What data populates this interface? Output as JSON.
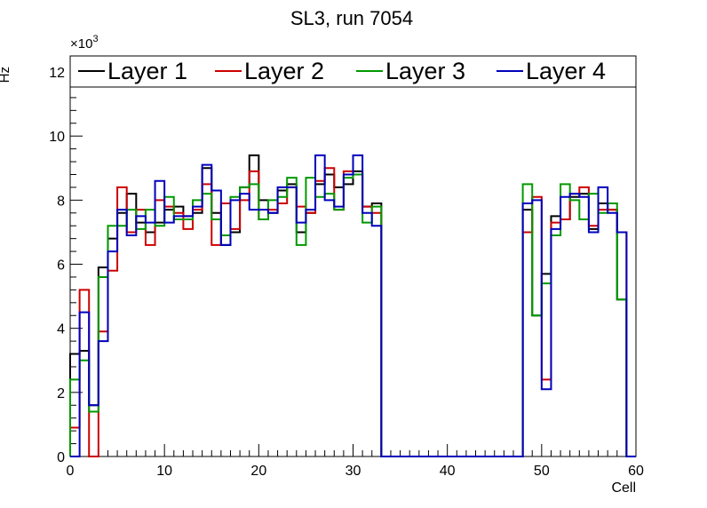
{
  "chart_data": {
    "type": "histogram-step",
    "title": "SL3, run 7054",
    "xlabel": "Cell",
    "ylabel": "Hz",
    "y_exponent_label": "×10",
    "y_exponent_power": "3",
    "xlim": [
      0,
      60
    ],
    "ylim": [
      0,
      12.5
    ],
    "y_scale_note": "values in units of 10^3 Hz",
    "x_ticks": [
      0,
      10,
      20,
      30,
      40,
      50,
      60
    ],
    "x_tick_labels": [
      "0",
      "10",
      "20",
      "30",
      "40",
      "50",
      "60"
    ],
    "y_ticks": [
      0,
      2,
      4,
      6,
      8,
      10,
      12
    ],
    "y_tick_labels": [
      "0",
      "2",
      "4",
      "6",
      "8",
      "10",
      "12"
    ],
    "legend_position": "top (spanning width)",
    "bin_edges_start": 0,
    "bin_width": 1,
    "series": [
      {
        "name": "Layer 1",
        "color": "#000000",
        "values": [
          3.2,
          3.3,
          1.6,
          5.9,
          6.8,
          7.6,
          8.2,
          7.3,
          7.0,
          7.3,
          7.7,
          7.8,
          7.5,
          7.6,
          9.0,
          7.6,
          6.6,
          7.0,
          8.4,
          9.4,
          8.0,
          7.6,
          8.3,
          8.5,
          7.0,
          7.6,
          8.5,
          8.8,
          8.4,
          8.5,
          8.9,
          7.8,
          7.9,
          0,
          0,
          0,
          0,
          0,
          0,
          0,
          0,
          0,
          0,
          0,
          0,
          0,
          0,
          0,
          7.7,
          4.4,
          5.7,
          7.5,
          7.4,
          8.1,
          8.2,
          7.1,
          7.9,
          7.7,
          4.9,
          0
        ]
      },
      {
        "name": "Layer 2",
        "color": "#cc0000",
        "values": [
          0.9,
          5.2,
          0,
          3.9,
          5.8,
          8.4,
          7.0,
          7.7,
          6.6,
          8.0,
          7.8,
          7.6,
          7.1,
          7.7,
          8.5,
          6.6,
          7.9,
          7.1,
          8.0,
          8.9,
          7.4,
          7.7,
          7.9,
          8.4,
          7.8,
          7.6,
          8.6,
          9.0,
          7.7,
          8.9,
          8.8,
          7.8,
          7.6,
          0,
          0,
          0,
          0,
          0,
          0,
          0,
          0,
          0,
          0,
          0,
          0,
          0,
          0,
          0,
          7.0,
          8.1,
          2.4,
          7.3,
          7.4,
          8.2,
          8.4,
          7.2,
          7.7,
          7.7,
          7.0,
          0
        ]
      },
      {
        "name": "Layer 3",
        "color": "#009900",
        "values": [
          2.4,
          3.0,
          1.4,
          5.6,
          7.2,
          7.2,
          7.7,
          7.1,
          7.7,
          7.2,
          8.1,
          7.4,
          7.4,
          8.0,
          8.2,
          7.4,
          6.9,
          8.1,
          8.4,
          8.5,
          7.4,
          8.0,
          8.1,
          8.7,
          6.6,
          8.7,
          8.1,
          8.2,
          7.7,
          8.7,
          8.8,
          7.3,
          7.8,
          0,
          0,
          0,
          0,
          0,
          0,
          0,
          0,
          0,
          0,
          0,
          0,
          0,
          0,
          0,
          8.5,
          4.4,
          5.4,
          6.9,
          8.5,
          8.0,
          7.4,
          8.2,
          7.6,
          7.9,
          4.9,
          0
        ]
      },
      {
        "name": "Layer 4",
        "color": "#0000bb",
        "values": [
          0,
          4.5,
          1.6,
          3.6,
          6.4,
          7.7,
          6.9,
          7.5,
          7.3,
          8.6,
          7.3,
          7.5,
          7.5,
          7.8,
          9.1,
          8.3,
          6.6,
          8.0,
          8.2,
          7.7,
          7.7,
          7.6,
          8.4,
          8.4,
          7.3,
          7.7,
          9.4,
          8.0,
          7.8,
          8.8,
          9.4,
          7.6,
          7.2,
          0,
          0,
          0,
          0,
          0,
          0,
          0,
          0,
          0,
          0,
          0,
          0,
          0,
          0,
          0,
          7.9,
          8.0,
          2.1,
          7.1,
          8.1,
          8.2,
          8.1,
          7.0,
          8.4,
          7.6,
          7.0,
          0
        ]
      }
    ]
  }
}
